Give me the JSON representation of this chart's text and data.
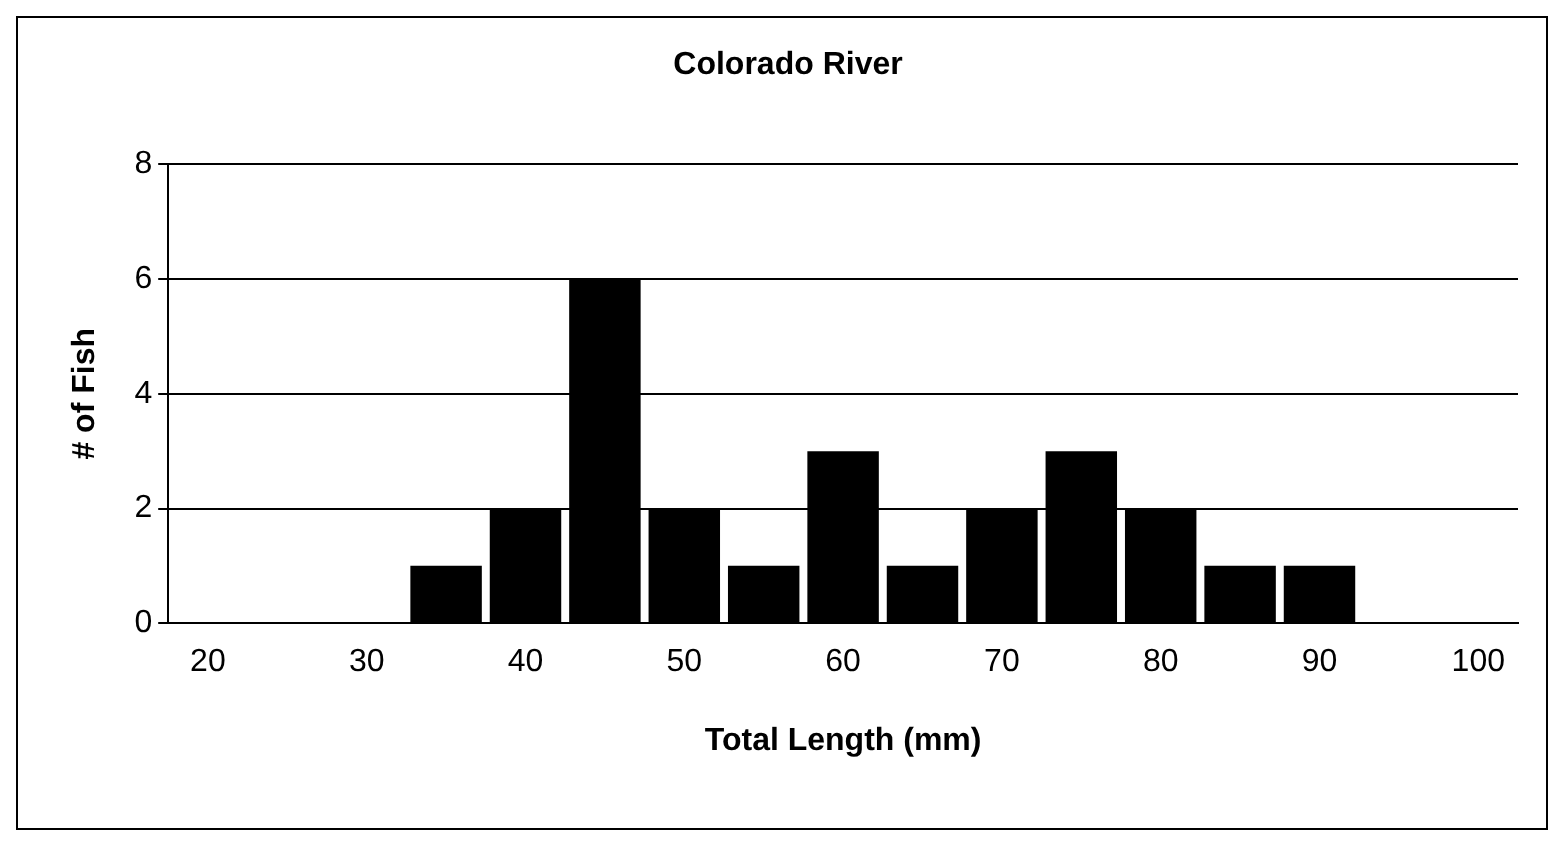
{
  "chart_data": {
    "type": "bar",
    "title": "Colorado River",
    "xlabel": "Total Length (mm)",
    "ylabel": "# of Fish",
    "categories": [
      "20",
      null,
      "30",
      null,
      "40",
      null,
      "50",
      null,
      "60",
      null,
      "70",
      null,
      "80",
      null,
      "90",
      null,
      "100"
    ],
    "values": [
      0,
      0,
      0,
      1,
      2,
      6,
      2,
      1,
      3,
      1,
      2,
      3,
      2,
      1,
      1,
      0,
      0
    ],
    "color": "#000000",
    "ylim": [
      0,
      8
    ],
    "yticks": [
      0,
      2,
      4,
      6,
      8
    ],
    "grid": "y",
    "legend": false
  }
}
